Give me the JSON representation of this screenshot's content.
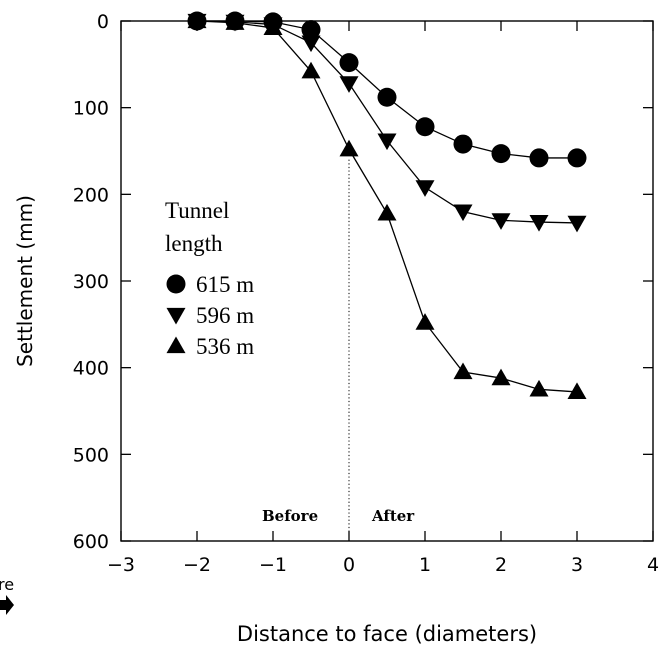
{
  "chart_data": {
    "type": "line",
    "xlabel": "Distance to face (diameters)",
    "ylabel": "Settlement (mm)",
    "xlim": [
      -3,
      4
    ],
    "ylim": [
      0,
      600
    ],
    "y_inverted": true,
    "grid": false,
    "x_ticks": [
      -3,
      -2,
      -1,
      0,
      1,
      2,
      3,
      4
    ],
    "y_ticks": [
      0,
      100,
      200,
      300,
      400,
      500,
      600
    ],
    "x_tick_labels": [
      "−3",
      "−2",
      "−1",
      "0",
      "1",
      "2",
      "3",
      "4"
    ],
    "y_tick_labels": [
      "0",
      "100",
      "200",
      "300",
      "400",
      "500",
      "600"
    ],
    "legend_title_line1": "Tunnel",
    "legend_title_line2": "length",
    "legend_placement": "middle-left",
    "annotations": {
      "before": "Before",
      "after": "After",
      "face_line_x": 0
    },
    "edge_fragment": "re",
    "series": [
      {
        "name": "615 m",
        "marker": "circle",
        "x": [
          -2,
          -1.5,
          -1,
          -0.5,
          0,
          0.5,
          1,
          1.5,
          2,
          2.5,
          3
        ],
        "values": [
          0,
          0,
          1,
          10,
          48,
          88,
          122,
          142,
          153,
          158,
          158
        ]
      },
      {
        "name": "596 m",
        "marker": "triangle-down",
        "x": [
          -2,
          -1.5,
          -1,
          -0.5,
          0,
          0.5,
          1,
          1.5,
          2,
          2.5,
          3
        ],
        "values": [
          0,
          1,
          4,
          25,
          72,
          138,
          192,
          220,
          230,
          232,
          233
        ]
      },
      {
        "name": "536 m",
        "marker": "triangle-up",
        "x": [
          -2,
          -1.5,
          -1,
          -0.5,
          0,
          0.5,
          1,
          1.5,
          2,
          2.5,
          3
        ],
        "values": [
          0,
          2,
          8,
          58,
          148,
          222,
          348,
          405,
          412,
          425,
          428
        ]
      }
    ]
  }
}
